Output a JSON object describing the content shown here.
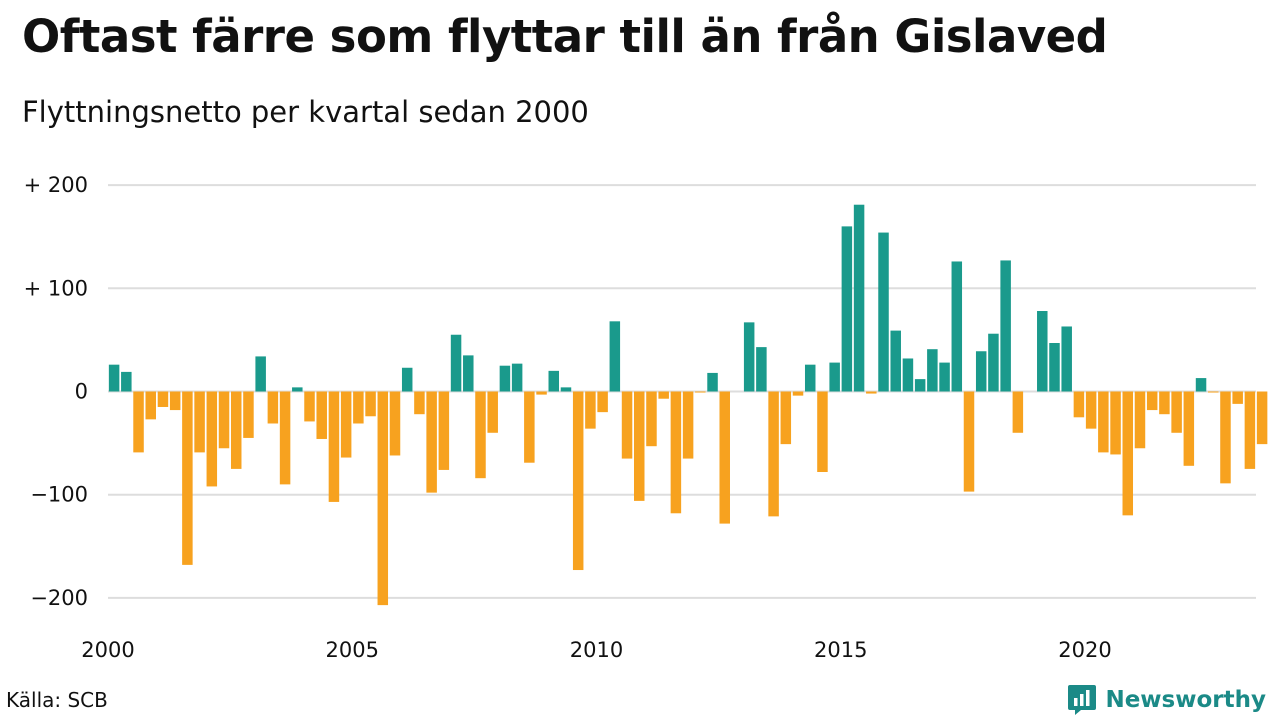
{
  "header": {
    "title": "Oftast färre som flyttar till än från Gislaved",
    "subtitle": "Flyttningsnetto per kvartal sedan 2000"
  },
  "footer": {
    "source": "Källa: SCB",
    "brand": "Newsworthy"
  },
  "colors": {
    "positive": "#1a9a8c",
    "negative": "#f7a21f",
    "grid": "#dddddd",
    "brand": "#1b8a87"
  },
  "chart_data": {
    "type": "bar",
    "x_start": 2000,
    "frequency": "quarterly",
    "ylim": [
      -210,
      210
    ],
    "y_ticks": [
      {
        "value": 200,
        "label": "+ 200"
      },
      {
        "value": 100,
        "label": "+ 100"
      },
      {
        "value": 0,
        "label": "0"
      },
      {
        "value": -100,
        "label": "−100"
      },
      {
        "value": -200,
        "label": "−200"
      }
    ],
    "x_ticks": [
      {
        "value": 2000,
        "label": "2000"
      },
      {
        "value": 2005,
        "label": "2005"
      },
      {
        "value": 2010,
        "label": "2010"
      },
      {
        "value": 2015,
        "label": "2015"
      },
      {
        "value": 2020,
        "label": "2020"
      }
    ],
    "grid": true,
    "values": [
      26,
      19,
      -59,
      -27,
      -15,
      -18,
      -168,
      -59,
      -92,
      -55,
      -75,
      -45,
      34,
      -31,
      -90,
      4,
      -29,
      -46,
      -107,
      -64,
      -31,
      -24,
      -207,
      -62,
      23,
      -22,
      -98,
      -76,
      55,
      35,
      -84,
      -40,
      25,
      27,
      -69,
      -3,
      20,
      4,
      -173,
      -36,
      -20,
      68,
      -65,
      -106,
      -53,
      -7,
      -118,
      -65,
      -1,
      18,
      -128,
      0,
      67,
      43,
      -121,
      -51,
      -4,
      26,
      -78,
      28,
      160,
      181,
      -2,
      154,
      59,
      32,
      12,
      41,
      28,
      126,
      -97,
      39,
      56,
      127,
      -40,
      0,
      78,
      47,
      63,
      -25,
      -36,
      -59,
      -61,
      -120,
      -55,
      -18,
      -22,
      -40,
      -72,
      13,
      -1,
      -89,
      -12,
      -75,
      -51
    ]
  }
}
